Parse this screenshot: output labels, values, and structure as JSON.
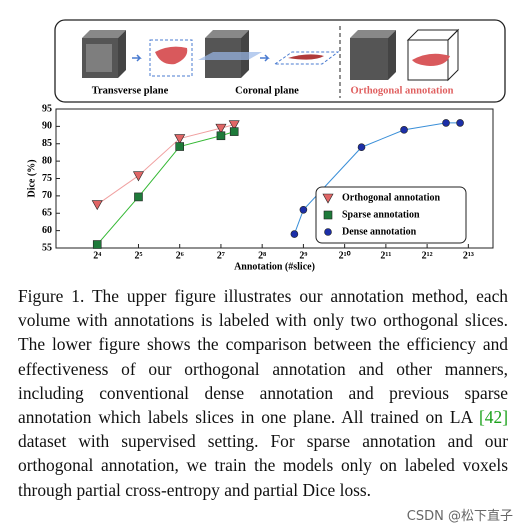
{
  "figure": {
    "panel_labels": [
      "Transverse plane",
      "Coronal plane",
      "Orthogonal annotation"
    ]
  },
  "chart_data": {
    "type": "line",
    "x_label": "Annotation (#slice)",
    "y_label": "Dice (%)",
    "xscale": "log2",
    "xlim": [
      8,
      12400
    ],
    "xticks": [
      {
        "value": 16,
        "label": "2⁴"
      },
      {
        "value": 32,
        "label": "2⁵"
      },
      {
        "value": 64,
        "label": "2⁶"
      },
      {
        "value": 128,
        "label": "2⁷"
      },
      {
        "value": 256,
        "label": "2⁸"
      },
      {
        "value": 512,
        "label": "2⁹"
      },
      {
        "value": 1024,
        "label": "2¹⁰"
      },
      {
        "value": 2048,
        "label": "2¹¹"
      },
      {
        "value": 4096,
        "label": "2¹²"
      },
      {
        "value": 8192,
        "label": "2¹³"
      }
    ],
    "ylim": [
      55,
      95
    ],
    "yticks": [
      55,
      60,
      65,
      70,
      75,
      80,
      85,
      90,
      95
    ],
    "legend": "lower right",
    "series": [
      {
        "name": "Orthogonal annotation",
        "marker": "triangle",
        "color": "#e06666",
        "line_color": "#f0a0a0",
        "x": [
          16,
          32,
          64,
          128,
          160
        ],
        "values": [
          67.5,
          75.8,
          86.5,
          89.5,
          90.5
        ]
      },
      {
        "name": "Sparse annotation",
        "marker": "square",
        "color": "#1e7a3a",
        "line_color": "#33b833",
        "x": [
          16,
          32,
          64,
          128,
          160
        ],
        "values": [
          56,
          69.7,
          84.2,
          87.3,
          88.5
        ]
      },
      {
        "name": "Dense annotation",
        "marker": "circle",
        "color": "#1c2fa8",
        "line_color": "#3a8fd8",
        "x": [
          440,
          512,
          1360,
          2780,
          5630,
          7130
        ],
        "values": [
          59,
          66,
          84,
          89,
          91,
          91
        ]
      }
    ]
  },
  "caption": {
    "before": "Figure 1.  The upper figure illustrates our annotation method, each volume with annotations is labeled with only two orthogonal slices. The lower figure shows the comparison between the efficiency and effectiveness of our orthogonal annotation and other manners, including conventional dense annotation and previous sparse annotation which labels slices in one plane. All trained on LA ",
    "citation": "[42]",
    "after": " dataset with supervised setting. For sparse annotation and our orthogonal annotation, we train the models only on labeled voxels through partial cross-entropy and partial Dice loss."
  },
  "watermark": "CSDN @松下直子"
}
